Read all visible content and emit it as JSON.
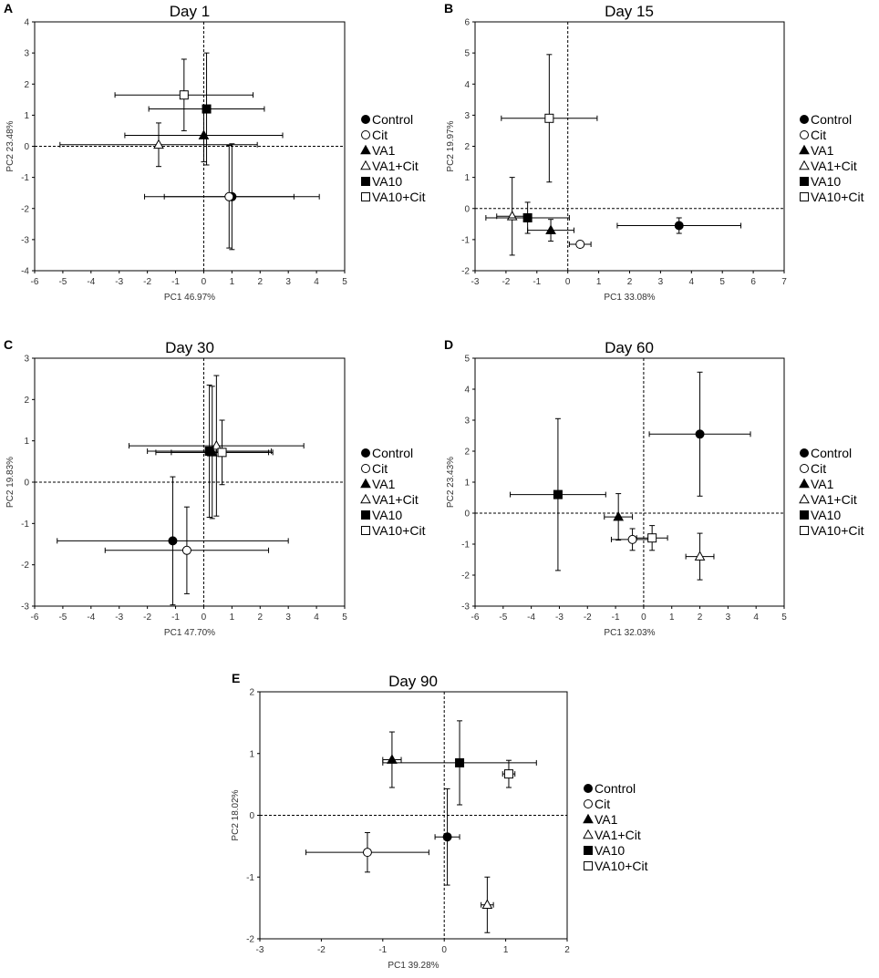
{
  "series_names": [
    "Control",
    "Cit",
    "VA1",
    "VA1+Cit",
    "VA10",
    "VA10+Cit"
  ],
  "series_markers": {
    "Control": "filled-circle",
    "Cit": "open-circle",
    "VA1": "filled-triangle",
    "VA1+Cit": "open-triangle",
    "VA10": "filled-square",
    "VA10+Cit": "open-square"
  },
  "colors": {
    "marker": "#000000",
    "axis": "#000000",
    "error_bar": "#000000",
    "background": "#ffffff"
  },
  "chart_data": [
    {
      "type": "scatter",
      "panel": "A",
      "title": "Day 1",
      "xlabel": "PC1 46.97%",
      "ylabel": "PC2 23.48%",
      "xlim": [
        -6,
        5
      ],
      "ylim": [
        -4,
        4
      ],
      "xticks": [
        -6,
        -5,
        -4,
        -3,
        -2,
        -1,
        0,
        1,
        2,
        3,
        4,
        5
      ],
      "yticks": [
        -4,
        -3,
        -2,
        -1,
        0,
        1,
        2,
        3,
        4
      ],
      "legend": "right",
      "points": [
        {
          "name": "Control",
          "x": 1.0,
          "y": -1.62,
          "xerr": 3.1,
          "yerr": 1.7
        },
        {
          "name": "Cit",
          "x": 0.9,
          "y": -1.62,
          "xerr": 2.3,
          "yerr": 1.65
        },
        {
          "name": "VA1",
          "x": 0.0,
          "y": 0.35,
          "xerr": 2.8,
          "yerr": 0.85
        },
        {
          "name": "VA1+Cit",
          "x": -1.6,
          "y": 0.05,
          "xerr": 3.5,
          "yerr": 0.7
        },
        {
          "name": "VA10",
          "x": 0.1,
          "y": 1.2,
          "xerr": 2.05,
          "yerr": 1.8
        },
        {
          "name": "VA10+Cit",
          "x": -0.7,
          "y": 1.65,
          "xerr": 2.45,
          "yerr": 1.15
        }
      ]
    },
    {
      "type": "scatter",
      "panel": "B",
      "title": "Day 15",
      "xlabel": "PC1 33.08%",
      "ylabel": "PC2 19.97%",
      "xlim": [
        -3,
        7
      ],
      "ylim": [
        -2,
        6
      ],
      "xticks": [
        -3,
        -2,
        -1,
        0,
        1,
        2,
        3,
        4,
        5,
        6,
        7
      ],
      "yticks": [
        -2,
        -1,
        0,
        1,
        2,
        3,
        4,
        5,
        6
      ],
      "legend": "right",
      "points": [
        {
          "name": "Control",
          "x": 3.6,
          "y": -0.55,
          "xerr": 2.0,
          "yerr": 0.25
        },
        {
          "name": "Cit",
          "x": 0.4,
          "y": -1.15,
          "xerr": 0.35,
          "yerr": 0.1
        },
        {
          "name": "VA1",
          "x": -0.55,
          "y": -0.7,
          "xerr": 0.75,
          "yerr": 0.35
        },
        {
          "name": "VA1+Cit",
          "x": -1.8,
          "y": -0.25,
          "xerr": 0.5,
          "yerr": 1.25
        },
        {
          "name": "VA10",
          "x": -1.3,
          "y": -0.3,
          "xerr": 1.35,
          "yerr": 0.5
        },
        {
          "name": "VA10+Cit",
          "x": -0.6,
          "y": 2.9,
          "xerr": 1.55,
          "yerr": 2.05
        }
      ]
    },
    {
      "type": "scatter",
      "panel": "C",
      "title": "Day 30",
      "xlabel": "PC1 47.70%",
      "ylabel": "PC2 19.83%",
      "xlim": [
        -6,
        5
      ],
      "ylim": [
        -3,
        3
      ],
      "xticks": [
        -6,
        -5,
        -4,
        -3,
        -2,
        -1,
        0,
        1,
        2,
        3,
        4,
        5
      ],
      "yticks": [
        -3,
        -2,
        -1,
        0,
        1,
        2,
        3
      ],
      "legend": "right",
      "points": [
        {
          "name": "Control",
          "x": -1.1,
          "y": -1.42,
          "xerr": 4.1,
          "yerr": 1.55
        },
        {
          "name": "Cit",
          "x": -0.6,
          "y": -1.65,
          "xerr": 2.9,
          "yerr": 1.05
        },
        {
          "name": "VA1",
          "x": 0.3,
          "y": 0.72,
          "xerr": 2.0,
          "yerr": 1.6
        },
        {
          "name": "VA1+Cit",
          "x": 0.45,
          "y": 0.88,
          "xerr": 3.1,
          "yerr": 1.7
        },
        {
          "name": "VA10",
          "x": 0.2,
          "y": 0.75,
          "xerr": 2.2,
          "yerr": 1.6
        },
        {
          "name": "VA10+Cit",
          "x": 0.65,
          "y": 0.72,
          "xerr": 1.8,
          "yerr": 0.78
        }
      ]
    },
    {
      "type": "scatter",
      "panel": "D",
      "title": "Day 60",
      "xlabel": "PC1 32.03%",
      "ylabel": "PC2 23.43%",
      "xlim": [
        -6,
        5
      ],
      "ylim": [
        -3,
        5
      ],
      "xticks": [
        -6,
        -5,
        -4,
        -3,
        -2,
        -1,
        0,
        1,
        2,
        3,
        4,
        5
      ],
      "yticks": [
        -3,
        -2,
        -1,
        0,
        1,
        2,
        3,
        4,
        5
      ],
      "legend": "right",
      "points": [
        {
          "name": "Control",
          "x": 2.0,
          "y": 2.55,
          "xerr": 1.8,
          "yerr": 2.0
        },
        {
          "name": "Cit",
          "x": -0.4,
          "y": -0.85,
          "xerr": 0.75,
          "yerr": 0.35
        },
        {
          "name": "VA1",
          "x": -0.9,
          "y": -0.12,
          "xerr": 0.5,
          "yerr": 0.75
        },
        {
          "name": "VA1+Cit",
          "x": 2.0,
          "y": -1.4,
          "xerr": 0.5,
          "yerr": 0.75
        },
        {
          "name": "VA10",
          "x": -3.05,
          "y": 0.6,
          "xerr": 1.7,
          "yerr": 2.45
        },
        {
          "name": "VA10+Cit",
          "x": 0.3,
          "y": -0.8,
          "xerr": 0.55,
          "yerr": 0.4
        }
      ]
    },
    {
      "type": "scatter",
      "panel": "E",
      "title": "Day 90",
      "xlabel": "PC1 39.28%",
      "ylabel": "PC2 18.02%",
      "xlim": [
        -3,
        2
      ],
      "ylim": [
        -2,
        2
      ],
      "xticks": [
        -3,
        -2,
        -1,
        0,
        1,
        2
      ],
      "yticks": [
        -2,
        -1,
        0,
        1,
        2
      ],
      "legend": "right",
      "points": [
        {
          "name": "Control",
          "x": 0.05,
          "y": -0.35,
          "xerr": 0.2,
          "yerr": 0.78
        },
        {
          "name": "Cit",
          "x": -1.25,
          "y": -0.6,
          "xerr": 1.0,
          "yerr": 0.32
        },
        {
          "name": "VA1",
          "x": -0.85,
          "y": 0.9,
          "xerr": 0.15,
          "yerr": 0.45
        },
        {
          "name": "VA1+Cit",
          "x": 0.7,
          "y": -1.45,
          "xerr": 0.1,
          "yerr": 0.45
        },
        {
          "name": "VA10",
          "x": 0.25,
          "y": 0.85,
          "xerr": 1.25,
          "yerr": 0.68
        },
        {
          "name": "VA10+Cit",
          "x": 1.05,
          "y": 0.67,
          "xerr": 0.1,
          "yerr": 0.22
        }
      ]
    }
  ]
}
